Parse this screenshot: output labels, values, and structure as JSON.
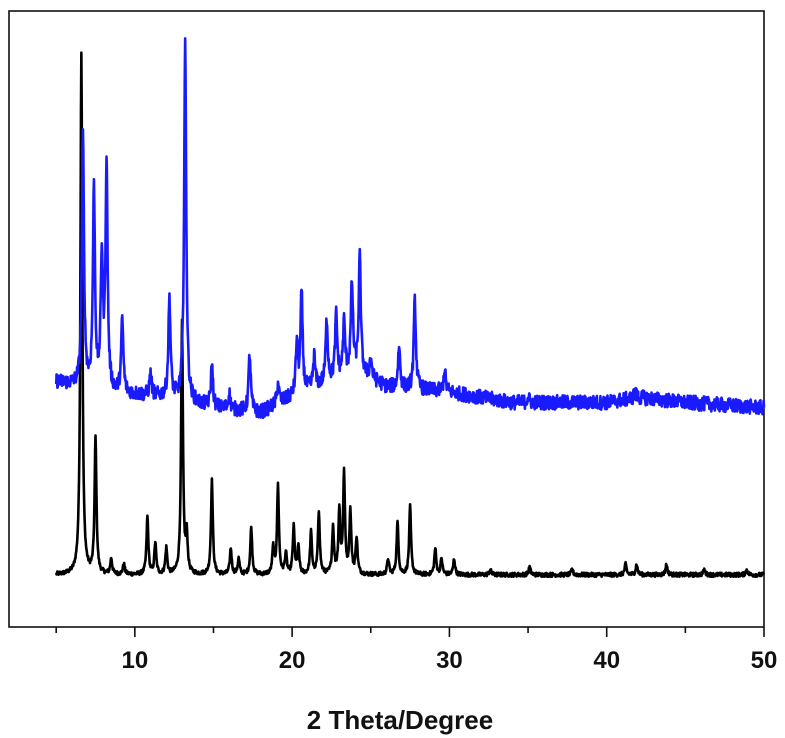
{
  "chart_data": {
    "type": "line",
    "title": "",
    "xlabel": "2 Theta/Degree",
    "ylabel": "",
    "xlim": [
      2,
      50
    ],
    "ylim": [
      -0.1,
      1.08
    ],
    "xticks": [
      10,
      20,
      30,
      40,
      50
    ],
    "xtick_labels": [
      "10",
      "20",
      "30",
      "40",
      "50"
    ],
    "minor_xtick_step": 5,
    "grid": false,
    "legend": "none",
    "series": [
      {
        "color": "#000000",
        "peaks": [
          [
            6.6,
            1.0
          ],
          [
            7.5,
            0.26
          ],
          [
            8.5,
            0.03
          ],
          [
            9.3,
            0.02
          ],
          [
            10.8,
            0.11
          ],
          [
            11.3,
            0.06
          ],
          [
            12.0,
            0.05
          ],
          [
            13.0,
            0.48
          ],
          [
            13.3,
            0.07
          ],
          [
            14.9,
            0.18
          ],
          [
            16.1,
            0.05
          ],
          [
            16.6,
            0.03
          ],
          [
            17.4,
            0.09
          ],
          [
            18.8,
            0.05
          ],
          [
            19.1,
            0.17
          ],
          [
            19.6,
            0.04
          ],
          [
            20.1,
            0.09
          ],
          [
            20.4,
            0.05
          ],
          [
            21.2,
            0.08
          ],
          [
            21.7,
            0.12
          ],
          [
            22.6,
            0.09
          ],
          [
            23.0,
            0.12
          ],
          [
            23.3,
            0.19
          ],
          [
            23.7,
            0.12
          ],
          [
            24.1,
            0.07
          ],
          [
            26.1,
            0.03
          ],
          [
            26.7,
            0.1
          ],
          [
            27.5,
            0.13
          ],
          [
            29.1,
            0.05
          ],
          [
            29.5,
            0.03
          ],
          [
            30.3,
            0.03
          ],
          [
            32.6,
            0.01
          ],
          [
            35.1,
            0.015
          ],
          [
            37.8,
            0.01
          ],
          [
            41.2,
            0.02
          ],
          [
            41.9,
            0.02
          ],
          [
            43.8,
            0.02
          ],
          [
            46.2,
            0.01
          ],
          [
            48.9,
            0.01
          ]
        ]
      },
      {
        "color": "#1a1aff",
        "baseline": [
          [
            5,
            0.37
          ],
          [
            8,
            0.35
          ],
          [
            12,
            0.34
          ],
          [
            15,
            0.32
          ],
          [
            18,
            0.31
          ],
          [
            20,
            0.34
          ],
          [
            24,
            0.39
          ],
          [
            26,
            0.36
          ],
          [
            30,
            0.35
          ],
          [
            34,
            0.33
          ],
          [
            40,
            0.33
          ],
          [
            42,
            0.34
          ],
          [
            45,
            0.33
          ],
          [
            50,
            0.32
          ]
        ],
        "peaks": [
          [
            6.7,
            0.48
          ],
          [
            7.4,
            0.38
          ],
          [
            7.9,
            0.25
          ],
          [
            8.2,
            0.43
          ],
          [
            9.2,
            0.14
          ],
          [
            11.0,
            0.04
          ],
          [
            12.2,
            0.19
          ],
          [
            13.2,
            0.68
          ],
          [
            14.9,
            0.08
          ],
          [
            16.0,
            0.03
          ],
          [
            17.3,
            0.11
          ],
          [
            19.1,
            0.04
          ],
          [
            20.3,
            0.1
          ],
          [
            20.6,
            0.19
          ],
          [
            21.4,
            0.06
          ],
          [
            22.2,
            0.12
          ],
          [
            22.8,
            0.12
          ],
          [
            23.3,
            0.1
          ],
          [
            23.8,
            0.17
          ],
          [
            24.3,
            0.22
          ],
          [
            25.0,
            0.04
          ],
          [
            26.8,
            0.08
          ],
          [
            27.8,
            0.17
          ],
          [
            29.7,
            0.04
          ],
          [
            35.0,
            0.01
          ],
          [
            41.8,
            0.01
          ]
        ]
      }
    ]
  }
}
